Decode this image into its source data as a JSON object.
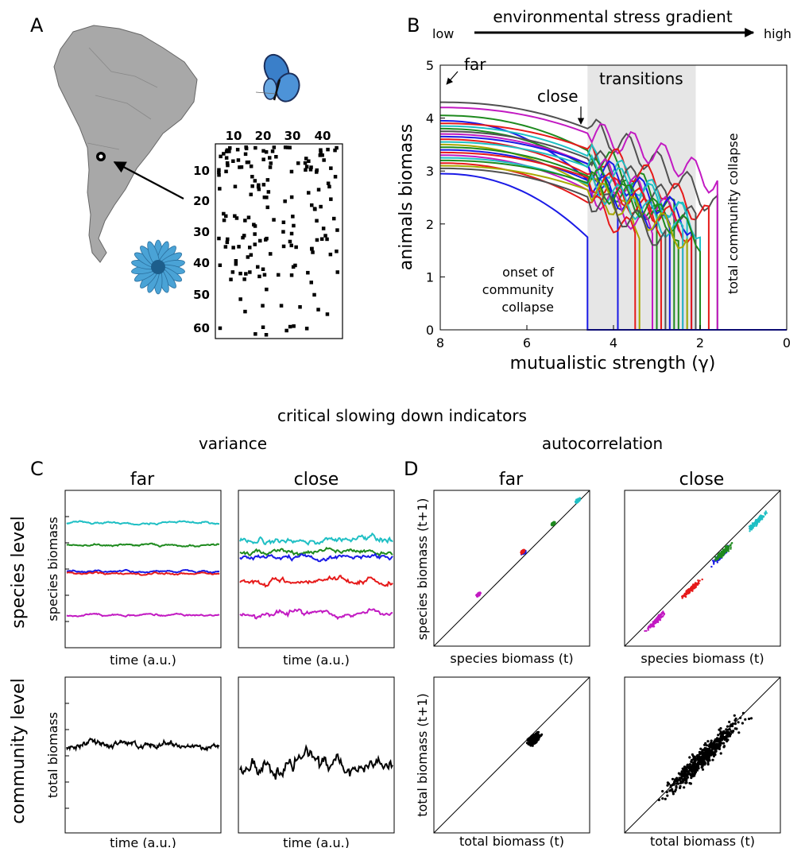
{
  "panels": {
    "a": {
      "label": "A"
    },
    "b": {
      "label": "B"
    },
    "c": {
      "label": "C"
    },
    "d": {
      "label": "D"
    }
  },
  "matrix": {
    "col_ticks": [
      "10",
      "20",
      "30",
      "40"
    ],
    "row_ticks": [
      "10",
      "20",
      "30",
      "40",
      "50",
      "60"
    ]
  },
  "gradient": {
    "text": "environmental stress gradient",
    "low": "low",
    "high": "high"
  },
  "panel_b": {
    "annotations": {
      "far": "far",
      "close": "close",
      "transitions": "transitions",
      "onset_1": "onset of",
      "onset_2": "community",
      "onset_3": "collapse",
      "total_collapse": "total community collapse"
    }
  },
  "section_title": "critical slowing down indicators",
  "variance_title": "variance",
  "autocorrelation_title": "autocorrelation",
  "cols": {
    "far": "far",
    "close": "close"
  },
  "rows": {
    "species": "species level",
    "community": "community level"
  },
  "labels": {
    "species_biomass": "species biomass",
    "total_biomass": "total biomass",
    "time": "time (a.u.)",
    "species_t": "species biomass (t)",
    "species_t1": "species biomass (t+1)",
    "total_t": "total biomass (t)",
    "total_t1": "total biomass (t+1)"
  },
  "colors": {
    "cyan": "#1fbfc4",
    "green": "#1e8a1e",
    "blue": "#1a1ae6",
    "red": "#e61a1a",
    "magenta": "#c21ac2",
    "gray": "#505050",
    "olive": "#a8a800",
    "shade": "#e6e6e6",
    "map": "#a8a8a8",
    "flower": "#4aa3d6"
  },
  "chart_data": {
    "type": "line",
    "xlabel": "mutualistic strength (γ)",
    "ylabel": "animals biomass",
    "xlim": [
      8,
      0
    ],
    "ylim": [
      0,
      5
    ],
    "x_ticks": [
      "8",
      "6",
      "4",
      "2",
      "0"
    ],
    "y_ticks": [
      "0",
      "1",
      "2",
      "3",
      "4",
      "5"
    ],
    "transition_region": [
      4.6,
      2.1
    ],
    "markers": {
      "far_gamma": 8,
      "close_gamma": 4.6
    },
    "series": [
      {
        "color": "#505050",
        "start": 4.3,
        "collapse_gamma": 1.6,
        "peak": 4.3
      },
      {
        "color": "#c21ac2",
        "start": 4.2,
        "collapse_gamma": 1.6,
        "peak": 4.7
      },
      {
        "color": "#1a1ae6",
        "start": 3.95,
        "collapse_gamma": 3.9
      },
      {
        "color": "#1e8a1e",
        "start": 4.05,
        "collapse_gamma": 2.6
      },
      {
        "color": "#e61a1a",
        "start": 3.9,
        "collapse_gamma": 1.8
      },
      {
        "color": "#1fbfc4",
        "start": 3.85,
        "collapse_gamma": 2.3
      },
      {
        "color": "#1e8a1e",
        "start": 3.8,
        "collapse_gamma": 3.0
      },
      {
        "color": "#505050",
        "start": 3.75,
        "collapse_gamma": 2.1
      },
      {
        "color": "#c21ac2",
        "start": 3.7,
        "collapse_gamma": 2.4
      },
      {
        "color": "#1a1ae6",
        "start": 3.65,
        "collapse_gamma": 2.2
      },
      {
        "color": "#e61a1a",
        "start": 3.6,
        "collapse_gamma": 2.9
      },
      {
        "color": "#1fbfc4",
        "start": 3.55,
        "collapse_gamma": 2.0
      },
      {
        "color": "#a8a800",
        "start": 3.5,
        "collapse_gamma": 3.4
      },
      {
        "color": "#1e8a1e",
        "start": 3.45,
        "collapse_gamma": 2.5
      },
      {
        "color": "#1a1ae6",
        "start": 3.4,
        "collapse_gamma": 2.7
      },
      {
        "color": "#e61a1a",
        "start": 3.35,
        "collapse_gamma": 2.2
      },
      {
        "color": "#c21ac2",
        "start": 3.3,
        "collapse_gamma": 3.1
      },
      {
        "color": "#1fbfc4",
        "start": 3.25,
        "collapse_gamma": 2.4
      },
      {
        "color": "#1e8a1e",
        "start": 3.2,
        "collapse_gamma": 2.0
      },
      {
        "color": "#e61a1a",
        "start": 3.15,
        "collapse_gamma": 3.5
      },
      {
        "color": "#a8a800",
        "start": 3.1,
        "collapse_gamma": 2.3
      },
      {
        "color": "#505050",
        "start": 3.05,
        "collapse_gamma": 2.8
      },
      {
        "color": "#1a1ae6",
        "start": 2.95,
        "collapse_gamma": 4.6
      }
    ]
  }
}
